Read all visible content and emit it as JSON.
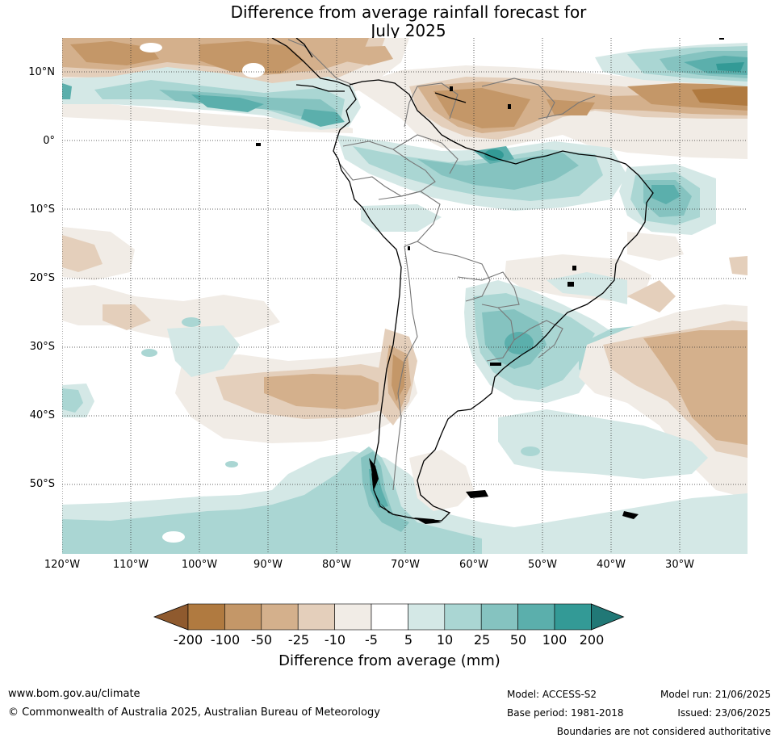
{
  "title_line1": "Difference from average rainfall forecast for",
  "title_line2": "July 2025",
  "lat_labels": [
    "10°N",
    "0°",
    "10°S",
    "20°S",
    "30°S",
    "40°S",
    "50°S"
  ],
  "lon_labels": [
    "120°W",
    "110°W",
    "100°W",
    "90°W",
    "80°W",
    "70°W",
    "60°W",
    "50°W",
    "40°W",
    "30°W"
  ],
  "colorbar": {
    "ticks": [
      "-200",
      "-100",
      "-50",
      "-25",
      "-10",
      "-5",
      "5",
      "10",
      "25",
      "50",
      "100",
      "200"
    ],
    "colors": [
      "#8f5a2e",
      "#b07a40",
      "#c49768",
      "#d4b08c",
      "#e4cfbb",
      "#f1ece6",
      "#ffffff",
      "#d4e8e6",
      "#aad6d3",
      "#85c3c0",
      "#5bafac",
      "#339a96",
      "#217876"
    ],
    "label": "Difference from average (mm)"
  },
  "footer": {
    "url": "www.bom.gov.au/climate",
    "copyright": "© Commonwealth of Australia 2025, Australian Bureau of Meteorology",
    "model": "Model: ACCESS-S2",
    "base_period": "Base period: 1981-2018",
    "model_run": "Model run: 21/06/2025",
    "issued": "Issued: 23/06/2025",
    "disclaimer": "Boundaries are not considered authoritative"
  }
}
